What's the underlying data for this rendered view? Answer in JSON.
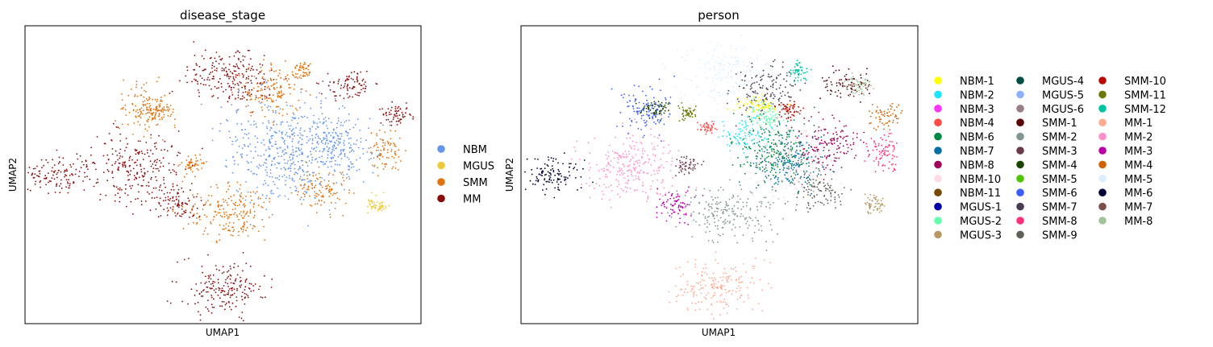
{
  "chart_data": [
    {
      "type": "scatter",
      "title": "disease_stage",
      "xlabel": "UMAP1",
      "ylabel": "UMAP2",
      "grid": false,
      "ticks": false,
      "legend_position": "right",
      "series": [
        {
          "name": "NBM",
          "color": "#6495ed"
        },
        {
          "name": "MGUS",
          "color": "#f0c93a"
        },
        {
          "name": "SMM",
          "color": "#e0720f"
        },
        {
          "name": "MM",
          "color": "#8b0a0a"
        }
      ],
      "clusters": [
        {
          "label": "MM",
          "x": 0.52,
          "y": 0.83,
          "sx": 0.06,
          "sy": 0.05
        },
        {
          "label": "MM",
          "x": 0.28,
          "y": 0.52,
          "sx": 0.06,
          "sy": 0.06
        },
        {
          "label": "MM",
          "x": 0.08,
          "y": 0.5,
          "sx": 0.04,
          "sy": 0.03
        },
        {
          "label": "MM",
          "x": 0.39,
          "y": 0.4,
          "sx": 0.025,
          "sy": 0.025
        },
        {
          "label": "MM",
          "x": 0.5,
          "y": 0.12,
          "sx": 0.055,
          "sy": 0.045
        },
        {
          "label": "MM",
          "x": 0.94,
          "y": 0.7,
          "sx": 0.018,
          "sy": 0.02
        },
        {
          "label": "MM",
          "x": 0.82,
          "y": 0.8,
          "sx": 0.03,
          "sy": 0.025
        },
        {
          "label": "SMM",
          "x": 0.52,
          "y": 0.37,
          "sx": 0.06,
          "sy": 0.045
        },
        {
          "label": "SMM",
          "x": 0.31,
          "y": 0.72,
          "sx": 0.035,
          "sy": 0.04
        },
        {
          "label": "SMM",
          "x": 0.62,
          "y": 0.78,
          "sx": 0.04,
          "sy": 0.045
        },
        {
          "label": "SMM",
          "x": 0.75,
          "y": 0.45,
          "sx": 0.035,
          "sy": 0.035
        },
        {
          "label": "SMM",
          "x": 0.91,
          "y": 0.58,
          "sx": 0.02,
          "sy": 0.035
        },
        {
          "label": "SMM",
          "x": 0.42,
          "y": 0.53,
          "sx": 0.015,
          "sy": 0.015
        },
        {
          "label": "SMM",
          "x": 0.7,
          "y": 0.85,
          "sx": 0.012,
          "sy": 0.015
        },
        {
          "label": "SMM",
          "x": 0.33,
          "y": 0.71,
          "sx": 0.02,
          "sy": 0.015
        },
        {
          "label": "MGUS",
          "x": 0.89,
          "y": 0.4,
          "sx": 0.012,
          "sy": 0.015
        },
        {
          "label": "NBM",
          "x": 0.66,
          "y": 0.58,
          "sx": 0.08,
          "sy": 0.09
        },
        {
          "label": "NBM",
          "x": 0.79,
          "y": 0.6,
          "sx": 0.045,
          "sy": 0.05
        }
      ]
    },
    {
      "type": "scatter",
      "title": "person",
      "xlabel": "UMAP1",
      "ylabel": "UMAP2",
      "grid": false,
      "ticks": false,
      "legend_position": "right",
      "legend_columns": 3,
      "series": [
        {
          "name": "NBM-1",
          "color": "#ffff00"
        },
        {
          "name": "NBM-2",
          "color": "#1ce6ff"
        },
        {
          "name": "NBM-3",
          "color": "#ff34ff"
        },
        {
          "name": "NBM-4",
          "color": "#ff4a46"
        },
        {
          "name": "NBM-6",
          "color": "#008941"
        },
        {
          "name": "NBM-7",
          "color": "#006fa6"
        },
        {
          "name": "NBM-8",
          "color": "#a30059"
        },
        {
          "name": "NBM-10",
          "color": "#ffdbe5"
        },
        {
          "name": "NBM-11",
          "color": "#7a4900"
        },
        {
          "name": "MGUS-1",
          "color": "#0000a6"
        },
        {
          "name": "MGUS-2",
          "color": "#63ffac"
        },
        {
          "name": "MGUS-3",
          "color": "#b79762"
        },
        {
          "name": "MGUS-4",
          "color": "#004d43"
        },
        {
          "name": "MGUS-5",
          "color": "#8fb0ff"
        },
        {
          "name": "MGUS-6",
          "color": "#997d87"
        },
        {
          "name": "SMM-1",
          "color": "#5a0007"
        },
        {
          "name": "SMM-2",
          "color": "#809693"
        },
        {
          "name": "SMM-3",
          "color": "#6a3a4c"
        },
        {
          "name": "SMM-4",
          "color": "#1b4400"
        },
        {
          "name": "SMM-5",
          "color": "#4fc601"
        },
        {
          "name": "SMM-6",
          "color": "#3b5dff"
        },
        {
          "name": "SMM-7",
          "color": "#4a3b53"
        },
        {
          "name": "SMM-8",
          "color": "#ff2f80"
        },
        {
          "name": "SMM-9",
          "color": "#61615a"
        },
        {
          "name": "SMM-10",
          "color": "#ba0900"
        },
        {
          "name": "SMM-11",
          "color": "#6b7900"
        },
        {
          "name": "SMM-12",
          "color": "#00c2a0"
        },
        {
          "name": "MM-1",
          "color": "#ffaa92"
        },
        {
          "name": "MM-2",
          "color": "#ff90c9"
        },
        {
          "name": "MM-3",
          "color": "#b903aa"
        },
        {
          "name": "MM-4",
          "color": "#d16100"
        },
        {
          "name": "MM-5",
          "color": "#ddefff"
        },
        {
          "name": "MM-6",
          "color": "#000035"
        },
        {
          "name": "MM-7",
          "color": "#7b4f4b"
        },
        {
          "name": "MM-8",
          "color": "#a1c299"
        }
      ],
      "clusters": [
        {
          "label": "MM-5",
          "x": 0.52,
          "y": 0.83,
          "sx": 0.06,
          "sy": 0.05
        },
        {
          "label": "MM-2",
          "x": 0.28,
          "y": 0.52,
          "sx": 0.06,
          "sy": 0.06
        },
        {
          "label": "MM-6",
          "x": 0.08,
          "y": 0.5,
          "sx": 0.04,
          "sy": 0.03
        },
        {
          "label": "MM-3",
          "x": 0.39,
          "y": 0.4,
          "sx": 0.025,
          "sy": 0.025
        },
        {
          "label": "MM-1",
          "x": 0.5,
          "y": 0.12,
          "sx": 0.055,
          "sy": 0.045
        },
        {
          "label": "MM-4",
          "x": 0.92,
          "y": 0.7,
          "sx": 0.018,
          "sy": 0.02
        },
        {
          "label": "SMM-1",
          "x": 0.82,
          "y": 0.8,
          "sx": 0.03,
          "sy": 0.025
        },
        {
          "label": "SMM-2",
          "x": 0.52,
          "y": 0.37,
          "sx": 0.06,
          "sy": 0.045
        },
        {
          "label": "SMM-6",
          "x": 0.31,
          "y": 0.72,
          "sx": 0.035,
          "sy": 0.04
        },
        {
          "label": "SMM-7",
          "x": 0.62,
          "y": 0.78,
          "sx": 0.04,
          "sy": 0.045
        },
        {
          "label": "SMM-9",
          "x": 0.75,
          "y": 0.45,
          "sx": 0.035,
          "sy": 0.035
        },
        {
          "label": "SMM-8",
          "x": 0.91,
          "y": 0.58,
          "sx": 0.02,
          "sy": 0.035
        },
        {
          "label": "SMM-3",
          "x": 0.42,
          "y": 0.53,
          "sx": 0.015,
          "sy": 0.015
        },
        {
          "label": "SMM-12",
          "x": 0.7,
          "y": 0.85,
          "sx": 0.012,
          "sy": 0.015
        },
        {
          "label": "MGUS-3",
          "x": 0.89,
          "y": 0.4,
          "sx": 0.012,
          "sy": 0.015
        },
        {
          "label": "MM-8",
          "x": 0.85,
          "y": 0.8,
          "sx": 0.015,
          "sy": 0.015
        },
        {
          "label": "NBM-10",
          "x": 0.67,
          "y": 0.56,
          "sx": 0.06,
          "sy": 0.07
        },
        {
          "label": "NBM-6",
          "x": 0.63,
          "y": 0.58,
          "sx": 0.05,
          "sy": 0.06
        },
        {
          "label": "NBM-2",
          "x": 0.57,
          "y": 0.64,
          "sx": 0.03,
          "sy": 0.03
        },
        {
          "label": "NBM-1",
          "x": 0.6,
          "y": 0.73,
          "sx": 0.03,
          "sy": 0.015
        },
        {
          "label": "NBM-8",
          "x": 0.78,
          "y": 0.6,
          "sx": 0.04,
          "sy": 0.045
        },
        {
          "label": "NBM-7",
          "x": 0.68,
          "y": 0.55,
          "sx": 0.04,
          "sy": 0.05
        },
        {
          "label": "MGUS-2",
          "x": 0.62,
          "y": 0.7,
          "sx": 0.02,
          "sy": 0.02
        },
        {
          "label": "SMM-10",
          "x": 0.68,
          "y": 0.72,
          "sx": 0.015,
          "sy": 0.015
        },
        {
          "label": "SMM-4",
          "x": 0.34,
          "y": 0.72,
          "sx": 0.02,
          "sy": 0.015
        },
        {
          "label": "SMM-11",
          "x": 0.42,
          "y": 0.71,
          "sx": 0.012,
          "sy": 0.012
        },
        {
          "label": "NBM-4",
          "x": 0.47,
          "y": 0.66,
          "sx": 0.01,
          "sy": 0.01
        }
      ]
    }
  ]
}
